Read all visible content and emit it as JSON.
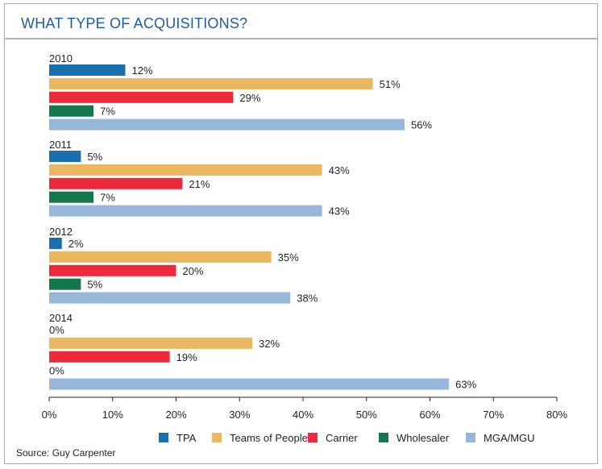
{
  "title": "WHAT TYPE OF ACQUISITIONS?",
  "source": "Source: Guy Carpenter",
  "chart_data": {
    "type": "bar",
    "orientation": "horizontal",
    "title": "WHAT TYPE OF ACQUISITIONS?",
    "xlim": [
      0,
      80
    ],
    "x_ticks": [
      "0%",
      "10%",
      "20%",
      "30%",
      "40%",
      "50%",
      "60%",
      "70%",
      "80%"
    ],
    "legend_position": "bottom",
    "groups": [
      "2010",
      "2011",
      "2012",
      "2014"
    ],
    "series": [
      {
        "name": "TPA",
        "color": "#1a6fad",
        "values": [
          12,
          5,
          2,
          0
        ],
        "labels": [
          "12%",
          "5%",
          "2%",
          "0%"
        ]
      },
      {
        "name": "Teams of People",
        "color": "#ebb861",
        "values": [
          51,
          43,
          35,
          32
        ],
        "labels": [
          "51%",
          "43%",
          "35%",
          "32%"
        ]
      },
      {
        "name": "Carrier",
        "color": "#ec2a3c",
        "values": [
          29,
          21,
          20,
          19
        ],
        "labels": [
          "29%",
          "21%",
          "20%",
          "19%"
        ]
      },
      {
        "name": "Wholesaler",
        "color": "#14784a",
        "values": [
          7,
          7,
          5,
          0
        ],
        "labels": [
          "7%",
          "7%",
          "5%",
          "0%"
        ]
      },
      {
        "name": "MGA/MGU",
        "color": "#97b7da",
        "values": [
          56,
          43,
          38,
          63
        ],
        "labels": [
          "56%",
          "43%",
          "38%",
          "63%"
        ]
      }
    ]
  }
}
